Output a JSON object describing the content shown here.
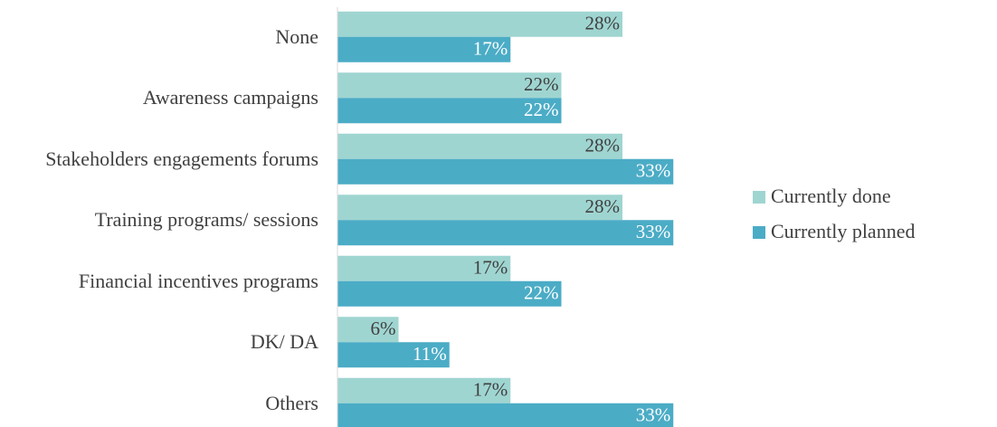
{
  "chart_data": {
    "type": "bar",
    "orientation": "horizontal",
    "categories": [
      "None",
      "Awareness campaigns",
      "Stakeholders engagements forums",
      "Training programs/ sessions",
      "Financial incentives programs",
      "DK/ DA",
      "Others"
    ],
    "series": [
      {
        "name": "Currently done",
        "color": "#9fd5d1",
        "values": [
          28,
          22,
          28,
          28,
          17,
          6,
          17
        ],
        "value_labels": [
          "28%",
          "22%",
          "28%",
          "28%",
          "17%",
          "6%",
          "17%"
        ]
      },
      {
        "name": "Currently planned",
        "color": "#4bacc6",
        "values": [
          17,
          22,
          33,
          33,
          22,
          11,
          33
        ],
        "value_labels": [
          "17%",
          "22%",
          "33%",
          "33%",
          "22%",
          "11%",
          "33%"
        ]
      }
    ],
    "xlim": [
      0,
      40
    ],
    "legend": "right"
  }
}
